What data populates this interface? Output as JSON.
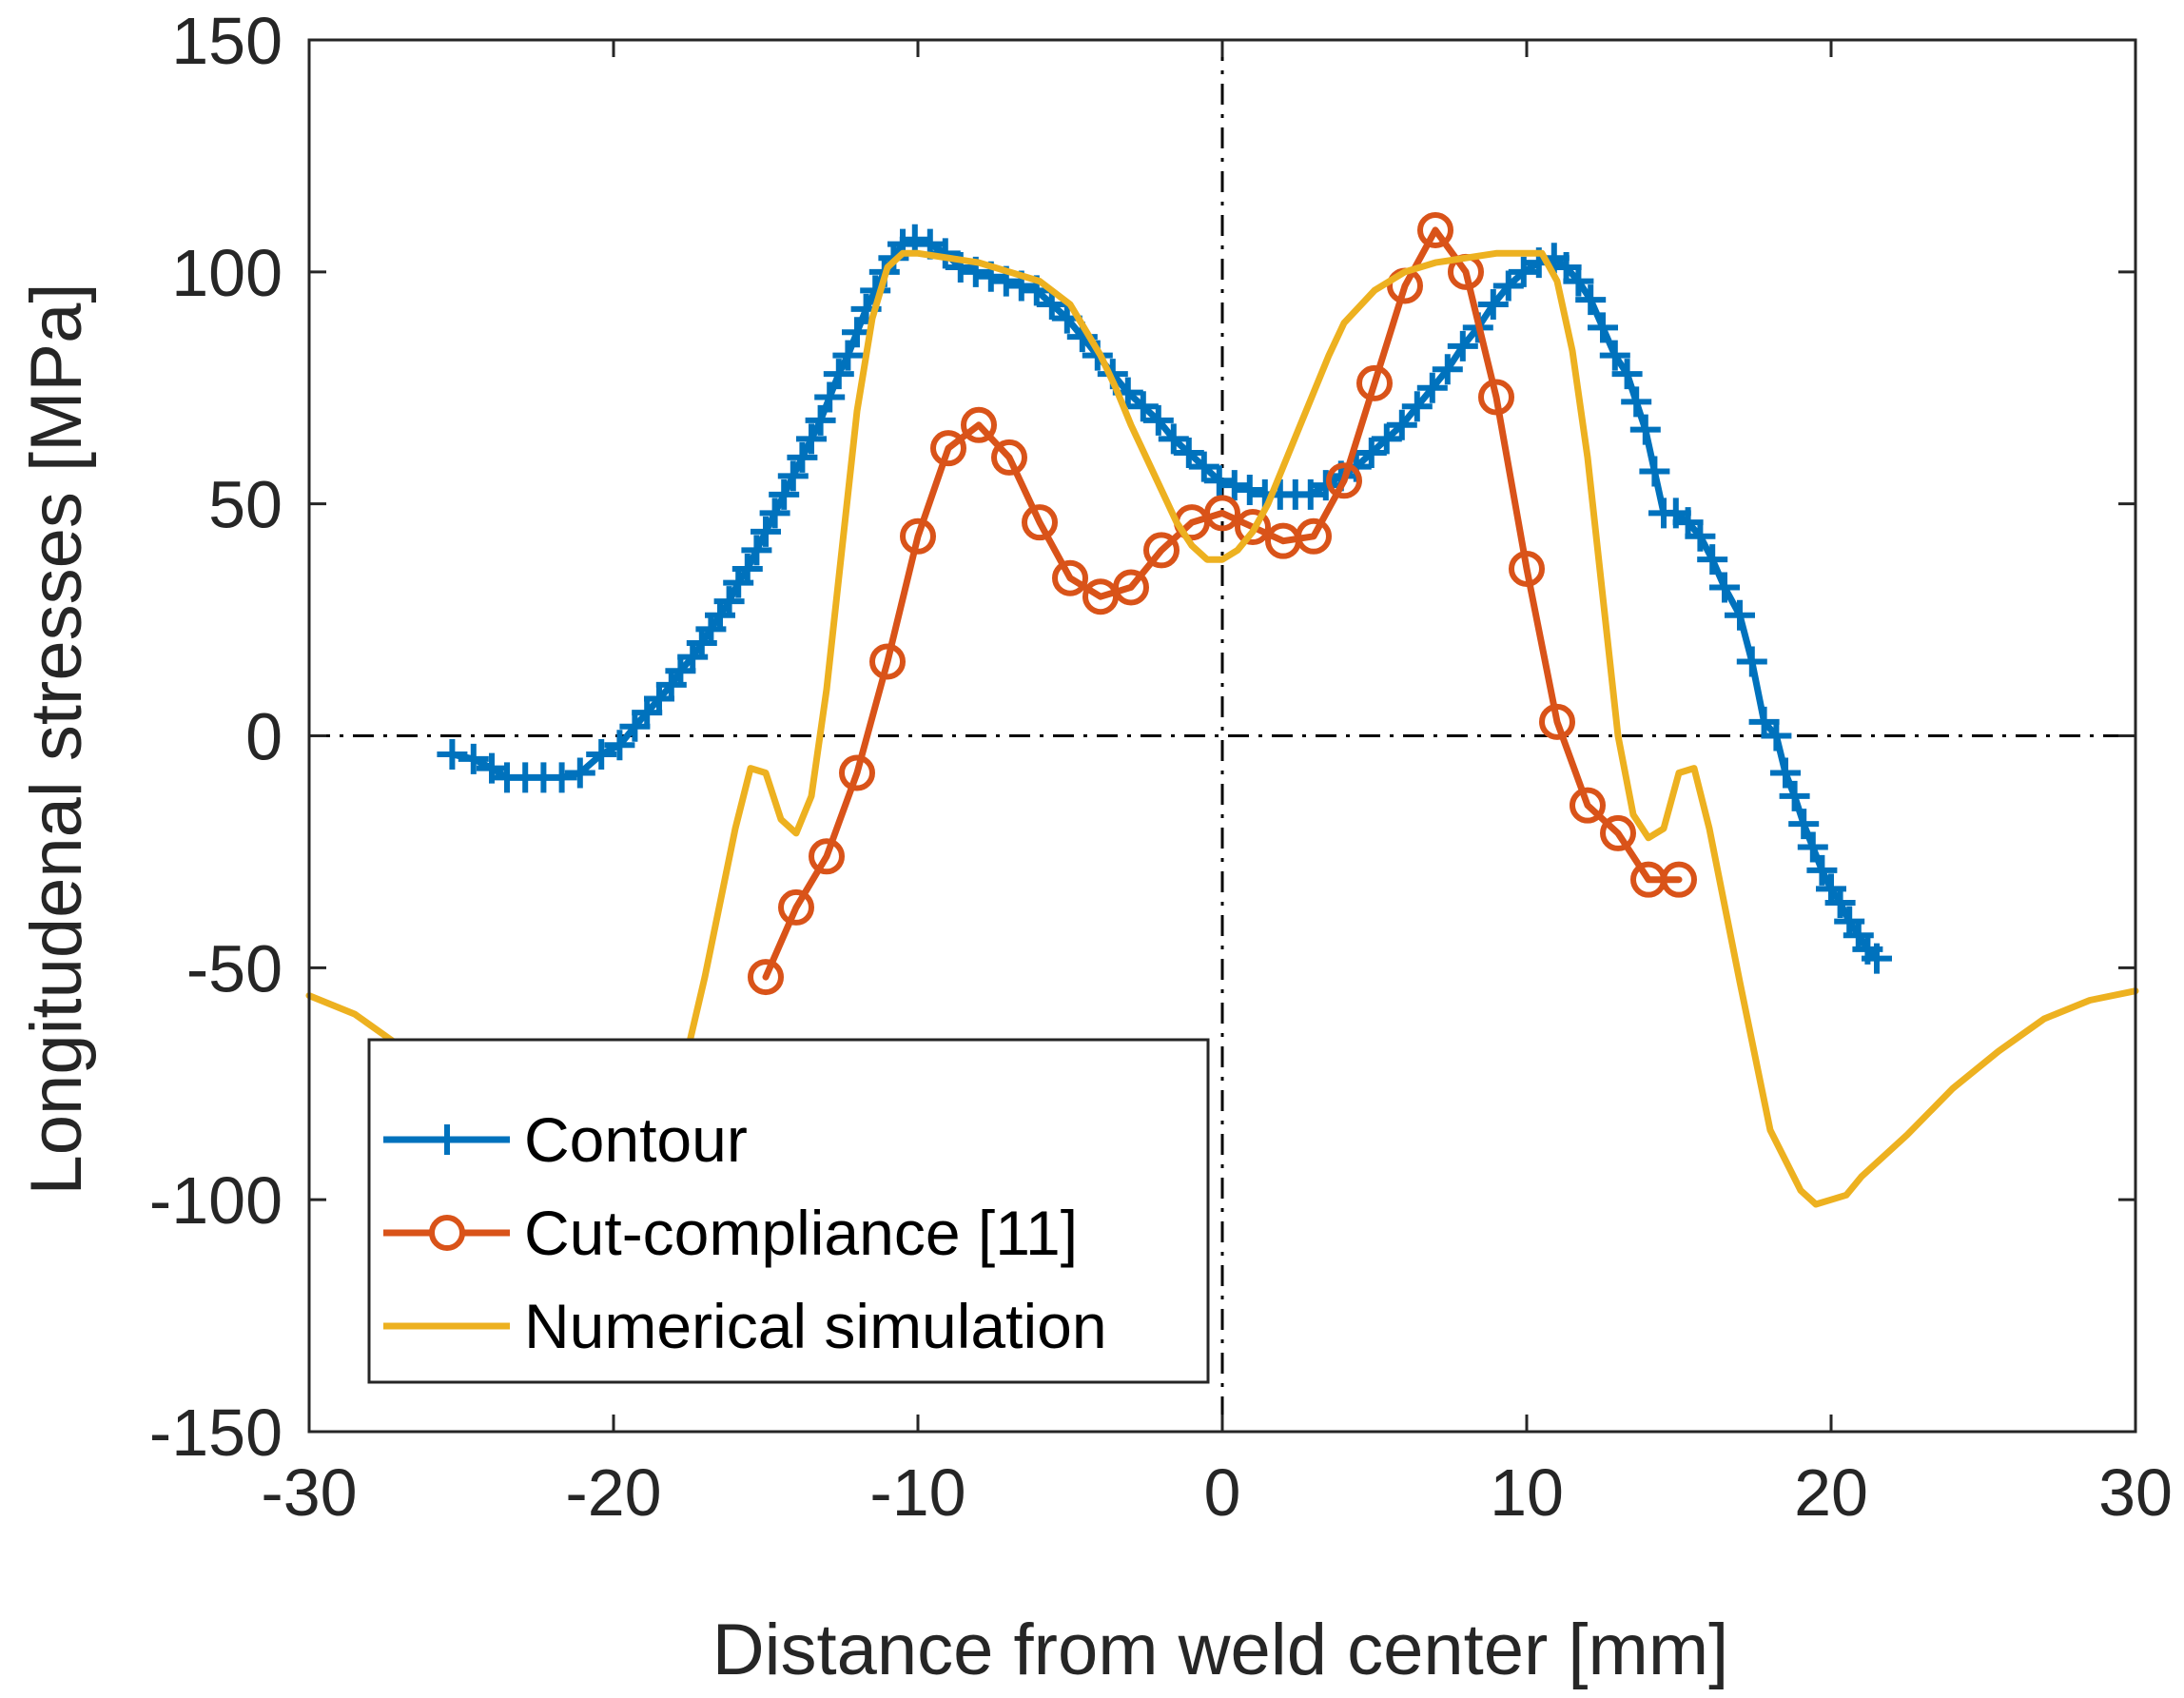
{
  "chart_data": {
    "type": "line",
    "title": "",
    "xlabel": "Distance from weld center [mm]",
    "ylabel": "Longitudenal stresses [MPa]",
    "xlim": [
      -30,
      30
    ],
    "ylim": [
      -150,
      150
    ],
    "xticks": [
      -30,
      -20,
      -10,
      0,
      10,
      20,
      30
    ],
    "yticks": [
      150,
      100,
      50,
      0,
      -50,
      -100,
      -150
    ],
    "grid": false,
    "box": true,
    "reference_lines": {
      "x": 0,
      "y": 0,
      "style": "dash-dot"
    },
    "legend_position": "bottom-left",
    "series": [
      {
        "name": "Contour",
        "color": "#0072BD",
        "marker": "plus",
        "x": [
          -25.3,
          -24.6,
          -24.0,
          -23.5,
          -22.9,
          -22.3,
          -21.7,
          -21.1,
          -20.4,
          -19.8,
          -19.3,
          -18.9,
          -18.5,
          -18.1,
          -17.8,
          -17.4,
          -17.1,
          -16.8,
          -16.5,
          -16.2,
          -15.9,
          -15.6,
          -15.3,
          -15.0,
          -14.7,
          -14.4,
          -14.1,
          -13.8,
          -13.5,
          -13.2,
          -12.9,
          -12.6,
          -12.3,
          -12.0,
          -11.7,
          -11.4,
          -11.1,
          -10.8,
          -10.5,
          -10.1,
          -9.6,
          -9.1,
          -8.6,
          -8.1,
          -7.6,
          -7.1,
          -6.6,
          -6.1,
          -5.6,
          -5.1,
          -4.6,
          -4.1,
          -3.6,
          -3.1,
          -2.6,
          -2.1,
          -1.6,
          -1.1,
          -0.6,
          -0.1,
          0.4,
          0.9,
          1.4,
          1.9,
          2.4,
          2.9,
          3.4,
          3.9,
          4.4,
          4.9,
          5.4,
          5.9,
          6.4,
          6.9,
          7.4,
          7.9,
          8.4,
          8.9,
          9.4,
          9.9,
          10.4,
          10.9,
          11.3,
          11.7,
          12.1,
          12.5,
          12.9,
          13.3,
          13.6,
          13.9,
          14.2,
          14.5,
          14.9,
          15.3,
          15.7,
          16.1,
          16.5,
          17.0,
          17.4,
          17.8,
          18.2,
          18.5,
          18.8,
          19.1,
          19.4,
          19.7,
          20.0,
          20.3,
          20.6,
          20.9,
          21.2,
          21.5
        ],
        "y": [
          -4,
          -5,
          -7,
          -9,
          -9,
          -9,
          -9,
          -8,
          -4,
          -2,
          2,
          5,
          8,
          11,
          14,
          17,
          20,
          23,
          26,
          29,
          33,
          36,
          40,
          44,
          48,
          52,
          56,
          60,
          64,
          68,
          73,
          78,
          82,
          87,
          92,
          96,
          100,
          103,
          106,
          107,
          106,
          104,
          101,
          100,
          99,
          98,
          97,
          96,
          93,
          90,
          86,
          82,
          78,
          74,
          71,
          68,
          64,
          61,
          58,
          55,
          54,
          53,
          52,
          52,
          52,
          52,
          54,
          56,
          58,
          61,
          64,
          67,
          71,
          75,
          79,
          84,
          88,
          93,
          97,
          100,
          102,
          103,
          101,
          98,
          94,
          88,
          82,
          78,
          72,
          66,
          57,
          48,
          48,
          46,
          43,
          38,
          32,
          26,
          16,
          3,
          0,
          -8,
          -13,
          -19,
          -24,
          -29,
          -33,
          -36,
          -40,
          -43,
          -46,
          -48
        ]
      },
      {
        "name": "Cut-compliance [11]",
        "color": "#D95319",
        "marker": "circle",
        "x": [
          -15,
          -14,
          -13,
          -12,
          -11,
          -10,
          -9,
          -8,
          -7,
          -6,
          -5,
          -4,
          -3,
          -2,
          -1,
          0,
          1,
          2,
          3,
          4,
          5,
          6,
          7,
          8,
          9,
          10,
          11,
          12,
          13,
          14,
          15
        ],
        "y": [
          -52,
          -37,
          -26,
          -8,
          16,
          43,
          62,
          67,
          60,
          46,
          34,
          30,
          32,
          40,
          46,
          48,
          45,
          42,
          43,
          55,
          76,
          97,
          109,
          100,
          73,
          36,
          3,
          -15,
          -21,
          -31,
          -31
        ]
      },
      {
        "name": "Numerical simulation",
        "color": "#EDB120",
        "marker": "none",
        "x": [
          -30,
          -28.5,
          -27,
          -25.5,
          -24,
          -22.5,
          -21,
          -20,
          -19,
          -18,
          -17,
          -16,
          -15.5,
          -15,
          -14.5,
          -14,
          -13.5,
          -13,
          -12.5,
          -12,
          -11.5,
          -11,
          -10.5,
          -10,
          -9,
          -8,
          -7,
          -6,
          -5,
          -4,
          -3.5,
          -3,
          -2.5,
          -2,
          -1.5,
          -1,
          -0.5,
          0,
          0.5,
          1,
          1.5,
          2,
          2.5,
          3,
          3.5,
          4,
          5,
          6,
          7,
          8,
          9,
          10,
          10.5,
          11,
          11.5,
          12,
          12.5,
          13,
          13.5,
          14,
          14.5,
          15,
          15.5,
          16,
          17,
          18,
          19,
          19.5,
          20,
          20.5,
          21,
          22.5,
          24,
          25.5,
          27,
          28.5,
          30
        ],
        "y": [
          -56,
          -60,
          -67,
          -74,
          -81,
          -89,
          -96,
          -100,
          -98,
          -80,
          -52,
          -20,
          -7,
          -8,
          -18,
          -21,
          -13,
          10,
          40,
          70,
          90,
          101,
          104,
          104,
          103,
          102,
          100,
          98,
          93,
          82,
          75,
          67,
          60,
          53,
          46,
          41,
          38,
          38,
          40,
          44,
          50,
          58,
          66,
          74,
          82,
          89,
          96,
          100,
          102,
          103,
          104,
          104,
          104,
          98,
          83,
          60,
          30,
          0,
          -17,
          -22,
          -20,
          -8,
          -7,
          -20,
          -53,
          -85,
          -98,
          -101,
          -100,
          -99,
          -95,
          -86,
          -76,
          -68,
          -61,
          -57,
          -55
        ]
      }
    ]
  }
}
